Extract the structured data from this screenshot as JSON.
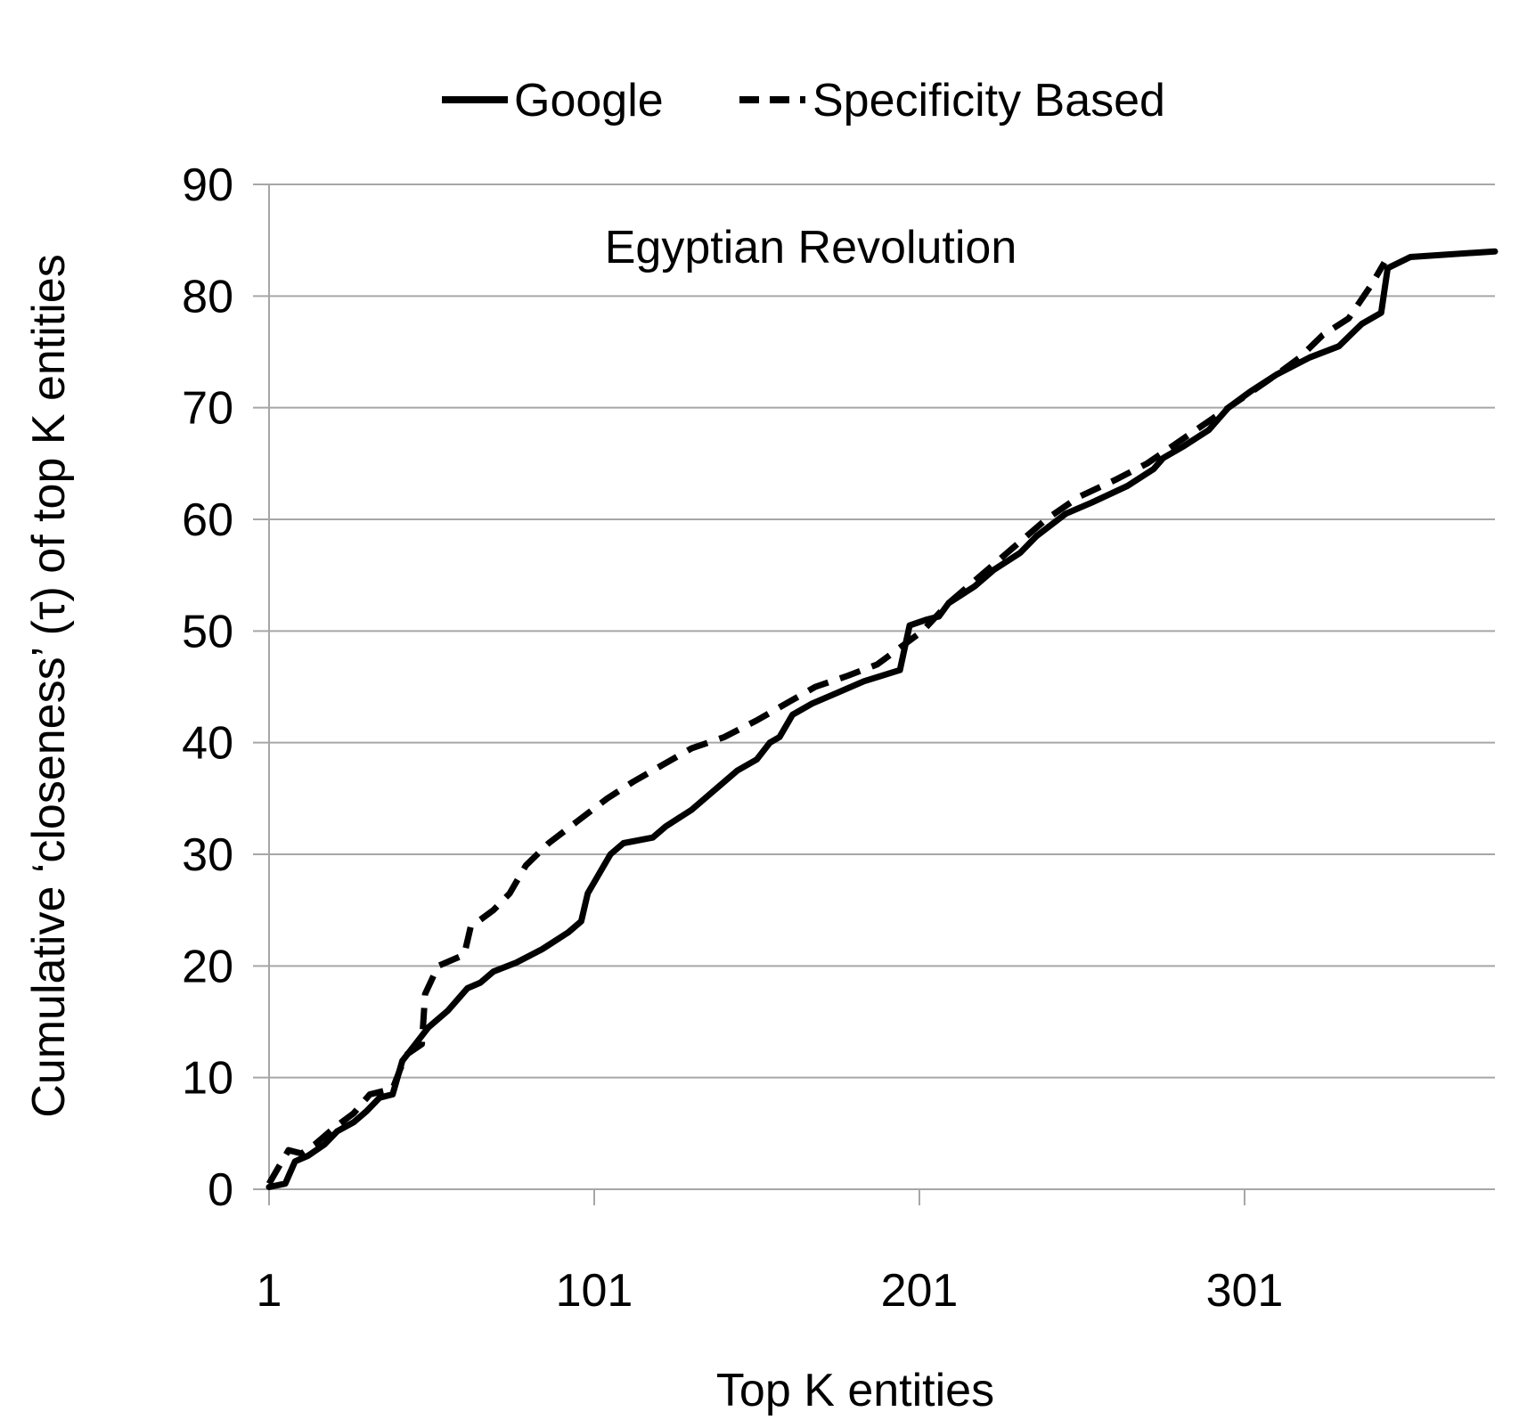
{
  "chart_data": {
    "type": "line",
    "title": "",
    "annotation": "Egyptian Revolution",
    "xlabel": "Top K entities",
    "ylabel": "Cumulative ‘closeness’ (τ) of top K entities",
    "xlim": [
      1,
      378
    ],
    "ylim": [
      0,
      90
    ],
    "x_ticks": [
      "1",
      "101",
      "201",
      "301"
    ],
    "y_ticks": [
      "0",
      "10",
      "20",
      "30",
      "40",
      "50",
      "60",
      "70",
      "80",
      "90"
    ],
    "grid": true,
    "legend_position": "top-center",
    "series": [
      {
        "name": "Google",
        "style": "solid",
        "color": "#000000",
        "points": [
          [
            1,
            0.2
          ],
          [
            6,
            0.5
          ],
          [
            9,
            2.5
          ],
          [
            13,
            3.0
          ],
          [
            18,
            4.0
          ],
          [
            22,
            5.2
          ],
          [
            27,
            6.0
          ],
          [
            31,
            7.0
          ],
          [
            35,
            8.2
          ],
          [
            39,
            8.5
          ],
          [
            42,
            11.5
          ],
          [
            46,
            13.0
          ],
          [
            50,
            14.5
          ],
          [
            56,
            16.0
          ],
          [
            62,
            18.0
          ],
          [
            66,
            18.5
          ],
          [
            70,
            19.5
          ],
          [
            77,
            20.3
          ],
          [
            85,
            21.5
          ],
          [
            93,
            23.0
          ],
          [
            97,
            24.0
          ],
          [
            99,
            26.5
          ],
          [
            103,
            28.5
          ],
          [
            106,
            30.0
          ],
          [
            110,
            31.0
          ],
          [
            119,
            31.5
          ],
          [
            123,
            32.5
          ],
          [
            131,
            34.0
          ],
          [
            139,
            36.0
          ],
          [
            145,
            37.5
          ],
          [
            151,
            38.5
          ],
          [
            155,
            40.0
          ],
          [
            158,
            40.5
          ],
          [
            162,
            42.5
          ],
          [
            168,
            43.5
          ],
          [
            176,
            44.5
          ],
          [
            184,
            45.5
          ],
          [
            195,
            46.5
          ],
          [
            198,
            50.5
          ],
          [
            203,
            51.0
          ],
          [
            207,
            51.3
          ],
          [
            210,
            52.5
          ],
          [
            218,
            54.0
          ],
          [
            224,
            55.5
          ],
          [
            232,
            57.0
          ],
          [
            237,
            58.5
          ],
          [
            246,
            60.5
          ],
          [
            254,
            61.5
          ],
          [
            265,
            63.0
          ],
          [
            273,
            64.5
          ],
          [
            276,
            65.5
          ],
          [
            282,
            66.5
          ],
          [
            290,
            68.0
          ],
          [
            296,
            70.0
          ],
          [
            303,
            71.5
          ],
          [
            311,
            73.0
          ],
          [
            321,
            74.5
          ],
          [
            330,
            75.5
          ],
          [
            337,
            77.5
          ],
          [
            343,
            78.5
          ],
          [
            345,
            82.5
          ],
          [
            352,
            83.5
          ],
          [
            378,
            84.0
          ]
        ]
      },
      {
        "name": "Specificity Based",
        "style": "dashed",
        "color": "#000000",
        "points": [
          [
            1,
            0.5
          ],
          [
            4,
            2.0
          ],
          [
            7,
            3.5
          ],
          [
            11,
            3.2
          ],
          [
            15,
            4.0
          ],
          [
            21,
            5.5
          ],
          [
            27,
            6.8
          ],
          [
            32,
            8.5
          ],
          [
            39,
            9.0
          ],
          [
            43,
            12.0
          ],
          [
            48,
            13.0
          ],
          [
            49,
            17.5
          ],
          [
            53,
            20.0
          ],
          [
            61,
            21.0
          ],
          [
            63,
            23.5
          ],
          [
            70,
            25.0
          ],
          [
            75,
            26.5
          ],
          [
            80,
            29.0
          ],
          [
            87,
            31.0
          ],
          [
            96,
            33.0
          ],
          [
            105,
            35.0
          ],
          [
            113,
            36.5
          ],
          [
            122,
            38.0
          ],
          [
            131,
            39.5
          ],
          [
            141,
            40.5
          ],
          [
            151,
            42.0
          ],
          [
            160,
            43.5
          ],
          [
            169,
            45.0
          ],
          [
            179,
            46.0
          ],
          [
            188,
            47.0
          ],
          [
            195,
            48.5
          ],
          [
            202,
            50.0
          ],
          [
            210,
            52.5
          ],
          [
            220,
            55.0
          ],
          [
            230,
            57.5
          ],
          [
            240,
            60.0
          ],
          [
            250,
            62.0
          ],
          [
            261,
            63.5
          ],
          [
            271,
            65.0
          ],
          [
            281,
            67.0
          ],
          [
            291,
            69.0
          ],
          [
            301,
            71.0
          ],
          [
            311,
            73.0
          ],
          [
            318,
            74.5
          ],
          [
            325,
            76.5
          ],
          [
            333,
            78.0
          ],
          [
            340,
            81.0
          ],
          [
            344,
            83.0
          ]
        ]
      }
    ]
  }
}
